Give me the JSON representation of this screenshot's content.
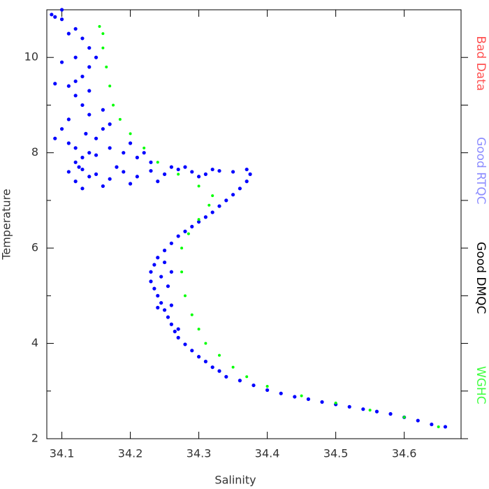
{
  "chart_data": {
    "type": "scatter",
    "xlabel": "Salinity",
    "ylabel": "Temperature",
    "xlim": [
      34.078,
      34.683
    ],
    "ylim": [
      2,
      11
    ],
    "xticks": [
      34.1,
      34.2,
      34.3,
      34.4,
      34.5,
      34.6
    ],
    "yticks": [
      2,
      4,
      6,
      8,
      10
    ],
    "yminor": [
      3,
      5,
      7,
      9
    ],
    "series": [
      {
        "name": "Bad Data",
        "color": "#ff5050",
        "x": [],
        "y": []
      },
      {
        "name": "Good RTQC",
        "color": "#0000ff",
        "label_color": "#8c8cff",
        "x": [
          34.66,
          34.64,
          34.62,
          34.6,
          34.58,
          34.56,
          34.54,
          34.52,
          34.5,
          34.48,
          34.46,
          34.44,
          34.42,
          34.4,
          34.38,
          34.36,
          34.34,
          34.33,
          34.32,
          34.31,
          34.3,
          34.29,
          34.28,
          34.27,
          34.265,
          34.26,
          34.255,
          34.25,
          34.245,
          34.24,
          34.235,
          34.23,
          34.23,
          34.235,
          34.24,
          34.25,
          34.26,
          34.27,
          34.28,
          34.29,
          34.3,
          34.31,
          34.32,
          34.33,
          34.34,
          34.35,
          34.36,
          34.37,
          34.375,
          34.37,
          34.245,
          34.255,
          34.26,
          34.27,
          34.25,
          34.24,
          34.26,
          34.35,
          34.33,
          34.31,
          34.29,
          34.27,
          34.25,
          34.23,
          34.21,
          34.19,
          34.17,
          34.15,
          34.13,
          34.12,
          34.11,
          34.24,
          34.2,
          34.16,
          34.13,
          34.3,
          34.32,
          34.12,
          34.13,
          34.12,
          34.14,
          34.1,
          34.09,
          34.11,
          34.15,
          34.17,
          34.19,
          34.21,
          34.23,
          34.18,
          34.16,
          34.14,
          34.13,
          34.12,
          34.11,
          34.09,
          34.13,
          34.14,
          34.15,
          34.14,
          34.13,
          34.12,
          34.1,
          34.09,
          34.085,
          34.1,
          34.11,
          34.12,
          34.1,
          34.12,
          34.14,
          34.16,
          34.17,
          34.2,
          34.22,
          34.15,
          34.135,
          34.11,
          34.125,
          34.14,
          34.26,
          34.28
        ],
        "y": [
          2.25,
          2.3,
          2.38,
          2.45,
          2.52,
          2.57,
          2.62,
          2.67,
          2.72,
          2.77,
          2.83,
          2.88,
          2.95,
          3.02,
          3.12,
          3.22,
          3.3,
          3.42,
          3.5,
          3.62,
          3.72,
          3.85,
          3.98,
          4.12,
          4.25,
          4.4,
          4.55,
          4.7,
          4.85,
          5.0,
          5.15,
          5.3,
          5.5,
          5.65,
          5.8,
          5.95,
          6.1,
          6.25,
          6.35,
          6.45,
          6.55,
          6.65,
          6.75,
          6.88,
          7.0,
          7.12,
          7.25,
          7.4,
          7.55,
          7.65,
          5.4,
          5.2,
          4.8,
          4.3,
          5.7,
          4.75,
          5.5,
          7.6,
          7.62,
          7.55,
          7.6,
          7.65,
          7.55,
          7.62,
          7.5,
          7.6,
          7.45,
          7.55,
          7.65,
          7.4,
          7.6,
          7.4,
          7.35,
          7.3,
          7.25,
          7.5,
          7.65,
          7.8,
          7.9,
          8.1,
          8.0,
          8.5,
          8.3,
          8.2,
          8.3,
          8.1,
          8.0,
          7.9,
          7.8,
          7.7,
          8.5,
          8.8,
          9.0,
          9.2,
          9.4,
          9.45,
          9.6,
          9.8,
          10.0,
          10.2,
          10.4,
          10.6,
          10.8,
          10.85,
          10.9,
          11.0,
          10.5,
          10.0,
          9.9,
          9.5,
          9.3,
          8.9,
          8.6,
          8.2,
          8.0,
          7.95,
          8.4,
          8.7,
          7.7,
          7.5,
          7.7,
          7.7
        ]
      },
      {
        "name": "Good DMQC",
        "color": "#000000",
        "x": [],
        "y": []
      },
      {
        "name": "WGHC",
        "color": "#00ff00",
        "label_color": "#40ff40",
        "x": [
          34.65,
          34.6,
          34.55,
          34.5,
          34.45,
          34.4,
          34.37,
          34.35,
          34.33,
          34.31,
          34.3,
          34.29,
          34.28,
          34.275,
          34.275,
          34.285,
          34.3,
          34.315,
          34.32,
          34.3,
          34.27,
          34.24,
          34.22,
          34.2,
          34.185,
          34.175,
          34.17,
          34.165,
          34.16,
          34.16,
          34.155
        ],
        "y": [
          2.25,
          2.45,
          2.6,
          2.75,
          2.9,
          3.1,
          3.3,
          3.5,
          3.75,
          4.0,
          4.3,
          4.6,
          5.0,
          5.5,
          6.0,
          6.3,
          6.6,
          6.9,
          7.1,
          7.3,
          7.55,
          7.8,
          8.1,
          8.4,
          8.7,
          9.0,
          9.4,
          9.8,
          10.2,
          10.5,
          10.65
        ]
      }
    ]
  }
}
